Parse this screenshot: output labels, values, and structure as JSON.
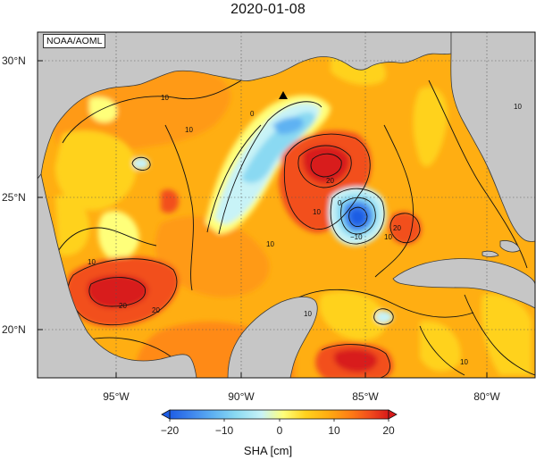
{
  "title": "2020-01-08",
  "credit": "NOAA/AOML",
  "lat_labels": [
    "30°N",
    "25°N",
    "20°N"
  ],
  "lon_labels": [
    "95°W",
    "90°W",
    "85°W",
    "80°W"
  ],
  "colorbar": {
    "label": "SHA [cm]",
    "ticks": [
      "−20",
      "−10",
      "0",
      "10",
      "20"
    ],
    "colors": [
      "#1e5de4",
      "#3f86ee",
      "#5fb2f2",
      "#8ad9f2",
      "#c8f3f7",
      "#ffff7a",
      "#ffd21e",
      "#ffae12",
      "#ff8014",
      "#f24f1c",
      "#d81a1a"
    ]
  },
  "contour_labels": [
    "10",
    "10",
    "0",
    "10",
    "20",
    "10",
    "−10",
    "0",
    "10",
    "20",
    "10",
    "20",
    "20",
    "10",
    "10",
    "10"
  ],
  "colors": {
    "land": "#c6c6c6",
    "land_outline": "#3a3a3a",
    "background_sea": "#ffae12",
    "grid": "#555555"
  },
  "marker": "triangle-marker"
}
